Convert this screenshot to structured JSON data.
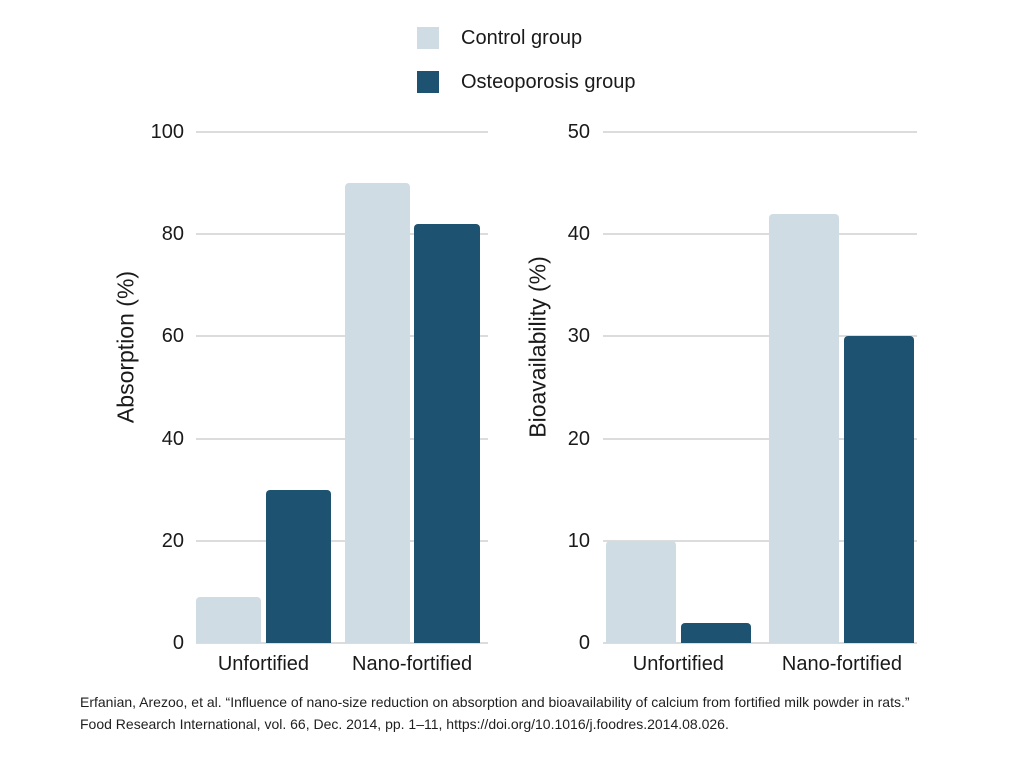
{
  "legend": {
    "items": [
      {
        "label": "Control group",
        "color": "#d0dce4"
      },
      {
        "label": "Osteoporosis group",
        "color": "#1e5271"
      }
    ]
  },
  "chart_data": [
    {
      "type": "bar",
      "title": "",
      "categories": [
        "Unfortified",
        "Nano-fortified"
      ],
      "series": [
        {
          "name": "Control group",
          "values": [
            9,
            90
          ],
          "color": "#d0dce4"
        },
        {
          "name": "Osteoporosis group",
          "values": [
            30,
            82
          ],
          "color": "#1e5271"
        }
      ],
      "xlabel": "",
      "ylabel": "Absorption (%)",
      "ylim": [
        0,
        100
      ],
      "yticks": [
        0,
        20,
        40,
        60,
        80,
        100
      ],
      "grid": true,
      "legend_position": "top-center"
    },
    {
      "type": "bar",
      "title": "",
      "categories": [
        "Unfortified",
        "Nano-fortified"
      ],
      "series": [
        {
          "name": "Control group",
          "values": [
            10,
            42
          ],
          "color": "#d0dce4"
        },
        {
          "name": "Osteoporosis group",
          "values": [
            2,
            30
          ],
          "color": "#1e5271"
        }
      ],
      "xlabel": "",
      "ylabel": "Bioavailability (%)",
      "ylim": [
        0,
        50
      ],
      "yticks": [
        0,
        10,
        20,
        30,
        40,
        50
      ],
      "grid": true,
      "legend_position": "top-center"
    }
  ],
  "citation": {
    "line1": "Erfanian, Arezoo, et al. “Influence of nano-size reduction on absorption and bioavailability of calcium from fortified milk powder in rats.”",
    "line2": "Food Research International, vol. 66, Dec. 2014, pp. 1–11, https://doi.org/10.1016/j.foodres.2014.08.026."
  }
}
